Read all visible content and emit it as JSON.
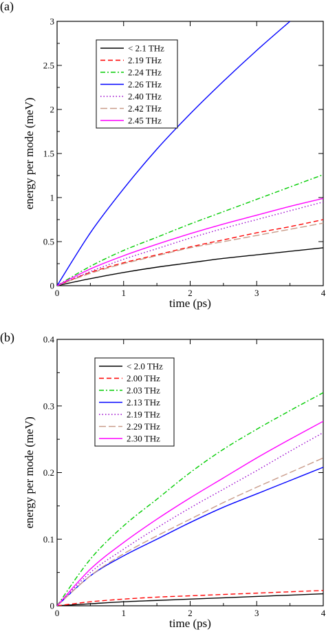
{
  "chart_data": [
    {
      "type": "line",
      "panel_label": "(a)",
      "xlabel": "time (ps)",
      "ylabel": "energy per mode (meV)",
      "xlim": [
        0,
        4
      ],
      "ylim": [
        0,
        3
      ],
      "xticks": [
        "0",
        "1",
        "2",
        "3",
        "4"
      ],
      "yticks": [
        "0",
        "0.5",
        "1",
        "1.5",
        "2",
        "2.5",
        "3"
      ],
      "legend_position": "top-left",
      "series": [
        {
          "name": "< 2.1  THz",
          "color": "#000000",
          "dash": "solid",
          "x": [
            0,
            0.5,
            1,
            1.5,
            2,
            2.5,
            3,
            3.5,
            4
          ],
          "y": [
            0,
            0.08,
            0.15,
            0.21,
            0.26,
            0.31,
            0.35,
            0.39,
            0.43
          ]
        },
        {
          "name": "2.19 THz",
          "color": "#ff0000",
          "dash": "dashed",
          "x": [
            0,
            0.5,
            1,
            1.5,
            2,
            2.5,
            3,
            3.5,
            4
          ],
          "y": [
            0,
            0.15,
            0.26,
            0.35,
            0.44,
            0.52,
            0.6,
            0.67,
            0.75
          ]
        },
        {
          "name": "2.24 THz",
          "color": "#00cc00",
          "dash": "dashdot",
          "x": [
            0,
            0.5,
            1,
            1.5,
            2,
            2.5,
            3,
            3.5,
            4
          ],
          "y": [
            0,
            0.22,
            0.4,
            0.55,
            0.7,
            0.84,
            0.98,
            1.12,
            1.26
          ]
        },
        {
          "name": "2.26 THz",
          "color": "#0000ff",
          "dash": "solid",
          "x": [
            0,
            0.5,
            1,
            1.5,
            2,
            2.5,
            3,
            3.5
          ],
          "y": [
            0,
            0.6,
            1.1,
            1.55,
            1.95,
            2.32,
            2.67,
            3.0
          ]
        },
        {
          "name": "2.40 THz",
          "color": "#9900cc",
          "dash": "dotted",
          "x": [
            0,
            0.5,
            1,
            1.5,
            2,
            2.5,
            3,
            3.5,
            4
          ],
          "y": [
            0,
            0.16,
            0.3,
            0.42,
            0.54,
            0.65,
            0.75,
            0.85,
            0.95
          ]
        },
        {
          "name": "2.42 THz",
          "color": "#c89a88",
          "dash": "longdash",
          "x": [
            0,
            0.5,
            1,
            1.5,
            2,
            2.5,
            3,
            3.5,
            4
          ],
          "y": [
            0,
            0.14,
            0.25,
            0.34,
            0.43,
            0.5,
            0.57,
            0.64,
            0.71
          ]
        },
        {
          "name": "2.45 THz",
          "color": "#ff00ff",
          "dash": "solid",
          "x": [
            0,
            0.5,
            1,
            1.5,
            2,
            2.5,
            3,
            3.5,
            4
          ],
          "y": [
            0,
            0.19,
            0.34,
            0.47,
            0.59,
            0.7,
            0.8,
            0.9,
            0.99
          ]
        }
      ]
    },
    {
      "type": "line",
      "panel_label": "(b)",
      "xlabel": "time (ps)",
      "ylabel": "energy per mode (meV)",
      "xlim": [
        0,
        4
      ],
      "ylim": [
        0,
        0.4
      ],
      "xticks": [
        "0",
        "1",
        "2",
        "3",
        "4"
      ],
      "yticks": [
        "0",
        "0.1",
        "0.2",
        "0.3",
        "0.4"
      ],
      "legend_position": "top-left",
      "series": [
        {
          "name": "< 2.0  THz",
          "color": "#000000",
          "dash": "solid",
          "x": [
            0,
            0.5,
            1,
            1.5,
            2,
            2.5,
            3,
            3.5,
            4
          ],
          "y": [
            0,
            0.003,
            0.006,
            0.008,
            0.01,
            0.012,
            0.014,
            0.016,
            0.018
          ]
        },
        {
          "name": "2.00 THz",
          "color": "#ff0000",
          "dash": "dashed",
          "x": [
            0,
            0.5,
            1,
            1.5,
            2,
            2.5,
            3,
            3.5,
            4
          ],
          "y": [
            0,
            0.006,
            0.01,
            0.013,
            0.015,
            0.017,
            0.019,
            0.021,
            0.023
          ]
        },
        {
          "name": "2.03 THz",
          "color": "#00cc00",
          "dash": "dashdot",
          "x": [
            0,
            0.5,
            1,
            1.5,
            2,
            2.5,
            3,
            3.5,
            4
          ],
          "y": [
            0,
            0.07,
            0.12,
            0.16,
            0.2,
            0.235,
            0.265,
            0.293,
            0.32
          ]
        },
        {
          "name": "2.13 THz",
          "color": "#0000ff",
          "dash": "solid",
          "x": [
            0,
            0.5,
            1,
            1.5,
            2,
            2.5,
            3,
            3.5,
            4
          ],
          "y": [
            0,
            0.045,
            0.075,
            0.1,
            0.125,
            0.148,
            0.168,
            0.188,
            0.208
          ]
        },
        {
          "name": "2.19 THz",
          "color": "#9900cc",
          "dash": "dotted",
          "x": [
            0,
            0.5,
            1,
            1.5,
            2,
            2.5,
            3,
            3.5,
            4
          ],
          "y": [
            0,
            0.05,
            0.085,
            0.117,
            0.147,
            0.175,
            0.203,
            0.232,
            0.26
          ]
        },
        {
          "name": "2.29 THz",
          "color": "#c89a88",
          "dash": "longdash",
          "x": [
            0,
            0.5,
            1,
            1.5,
            2,
            2.5,
            3,
            3.5,
            4
          ],
          "y": [
            0,
            0.045,
            0.078,
            0.105,
            0.13,
            0.155,
            0.178,
            0.2,
            0.222
          ]
        },
        {
          "name": "2.30 THz",
          "color": "#ff00ff",
          "dash": "solid",
          "x": [
            0,
            0.5,
            1,
            1.5,
            2,
            2.5,
            3,
            3.5,
            4
          ],
          "y": [
            0,
            0.055,
            0.095,
            0.13,
            0.162,
            0.192,
            0.222,
            0.25,
            0.277
          ]
        }
      ]
    }
  ]
}
